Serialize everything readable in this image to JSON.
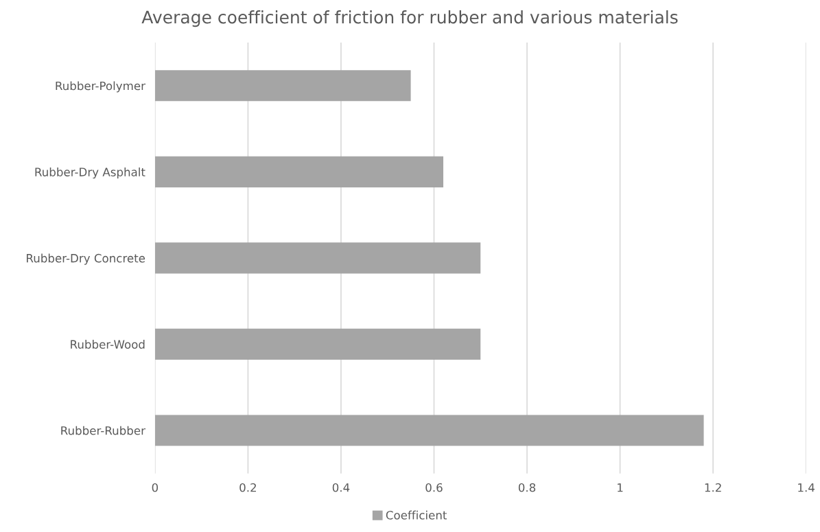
{
  "chart_data": {
    "type": "bar",
    "orientation": "horizontal",
    "title": "Average coefficient of friction for rubber and various materials",
    "categories": [
      "Rubber-Polymer",
      "Rubber-Dry Asphalt",
      "Rubber-Dry Concrete",
      "Rubber-Wood",
      "Rubber-Rubber"
    ],
    "series": [
      {
        "name": "Coefficient",
        "color": "#a5a5a5",
        "values": [
          0.55,
          0.62,
          0.7,
          0.7,
          1.18
        ]
      }
    ],
    "xlim": [
      0,
      1.4
    ],
    "xticks": [
      0,
      0.2,
      0.4,
      0.6,
      0.8,
      1,
      1.2,
      1.4
    ],
    "grid": "x",
    "legend": "bottom"
  }
}
